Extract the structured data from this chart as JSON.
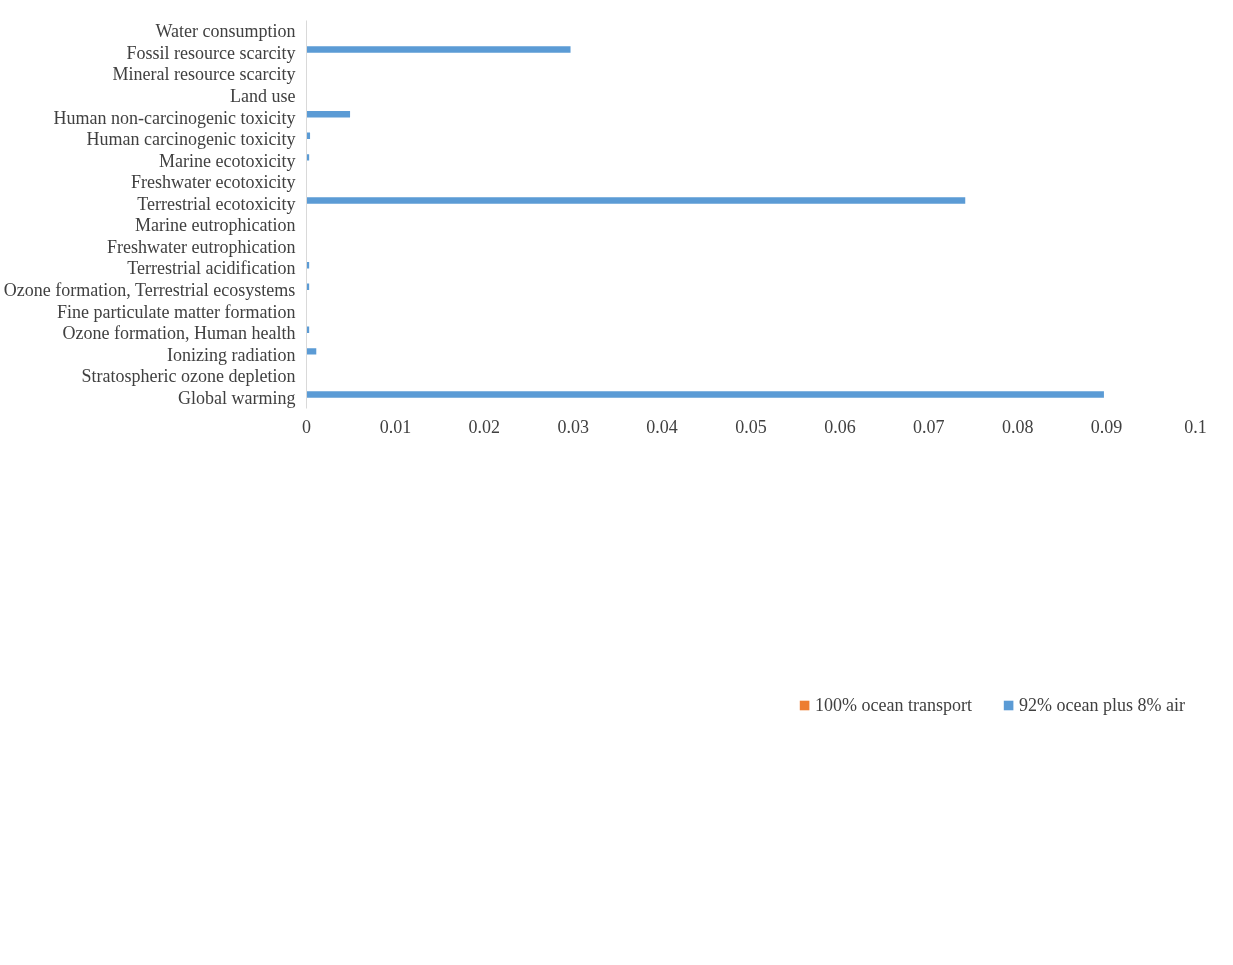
{
  "chart_data": {
    "type": "bar",
    "orientation": "horizontal",
    "categories": [
      "Water consumption",
      "Fossil resource scarcity",
      "Mineral resource scarcity",
      "Land use",
      "Human non-carcinogenic toxicity",
      "Human carcinogenic toxicity",
      "Marine ecotoxicity",
      "Freshwater ecotoxicity",
      "Terrestrial ecotoxicity",
      "Marine eutrophication",
      "Freshwater eutrophication",
      "Terrestrial acidification",
      "Ozone formation, Terrestrial ecosystems",
      "Fine particulate matter formation",
      "Ozone formation, Human health",
      "Ionizing radiation",
      "Stratospheric ozone depletion",
      "Global warming"
    ],
    "series": [
      {
        "name": "100% ocean transport",
        "color": "#ed7d31",
        "values": [
          0,
          0,
          0,
          0,
          0,
          0,
          0,
          0,
          0,
          0,
          0,
          0,
          0,
          0,
          0,
          0,
          0,
          0
        ]
      },
      {
        "name": "92% ocean plus 8% air",
        "color": "#5b9bd5",
        "values": [
          0,
          0.0297,
          0,
          0,
          0.0049,
          0.0004,
          0.0003,
          0,
          0.0741,
          0,
          0,
          0.0003,
          0.0003,
          0,
          0.0003,
          0.0011,
          0,
          0.0897
        ]
      }
    ],
    "xlim": [
      0,
      0.1
    ],
    "xticks": [
      0,
      0.01,
      0.02,
      0.03,
      0.04,
      0.05,
      0.06,
      0.07,
      0.08,
      0.09,
      0.1
    ],
    "grid": false,
    "legend": "bottom"
  }
}
